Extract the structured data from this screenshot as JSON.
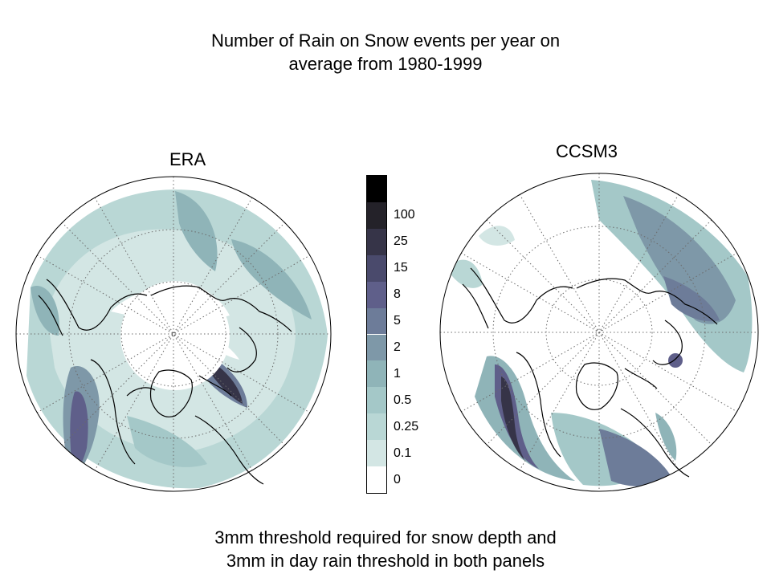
{
  "title_line1": "Number of Rain on Snow events per year on",
  "title_line2": "average from 1980-1999",
  "panels": {
    "left": "ERA",
    "right": "CCSM3"
  },
  "colorbar": {
    "labels": [
      "0",
      "0.1",
      "0.25",
      "0.5",
      "1",
      "2",
      "5",
      "8",
      "15",
      "25",
      "100"
    ],
    "colors": [
      "#ffffff",
      "#d3e6e4",
      "#b9d7d5",
      "#a4c8c8",
      "#8fb4b8",
      "#7e98a8",
      "#6d7c99",
      "#5f5f8a",
      "#4a4a6c",
      "#363448",
      "#242229",
      "#000000"
    ]
  },
  "caption_line1": "3mm threshold required for snow depth and",
  "caption_line2": "3mm in day rain threshold in both panels"
}
